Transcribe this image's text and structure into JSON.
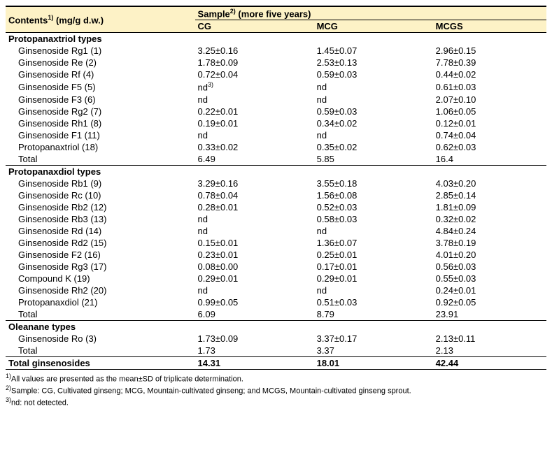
{
  "header": {
    "contents_label": "Contents",
    "contents_sup": "1)",
    "contents_unit": " (mg/g d.w.)",
    "sample_label": "Sample",
    "sample_sup": "2)",
    "sample_note": " (more five years)",
    "col_cg": "CG",
    "col_mcg": "MCG",
    "col_mcgs": "MCGS"
  },
  "sections": [
    {
      "title": "Protopanaxtriol types",
      "rows": [
        {
          "name": "Ginsenoside Rg1 (1)",
          "cg": "3.25±0.16",
          "mcg": "1.45±0.07",
          "mcgs": "2.96±0.15"
        },
        {
          "name": "Ginsenoside Re (2)",
          "cg": "1.78±0.09",
          "mcg": "2.53±0.13",
          "mcgs": "7.78±0.39"
        },
        {
          "name": "Ginsenoside Rf (4)",
          "cg": "0.72±0.04",
          "mcg": "0.59±0.03",
          "mcgs": "0.44±0.02"
        },
        {
          "name": "Ginsenoside F5 (5)",
          "cg": "nd",
          "cg_sup": "3)",
          "mcg": "nd",
          "mcgs": "0.61±0.03"
        },
        {
          "name": "Ginsenoside F3 (6)",
          "cg": "nd",
          "mcg": "nd",
          "mcgs": "2.07±0.10"
        },
        {
          "name": "Ginsenoside Rg2 (7)",
          "cg": "0.22±0.01",
          "mcg": "0.59±0.03",
          "mcgs": "1.06±0.05"
        },
        {
          "name": "Ginsenoside Rh1 (8)",
          "cg": "0.19±0.01",
          "mcg": "0.34±0.02",
          "mcgs": "0.12±0.01"
        },
        {
          "name": "Ginsenoside F1 (11)",
          "cg": "nd",
          "mcg": "nd",
          "mcgs": "0.74±0.04"
        },
        {
          "name": "Protopanaxtriol (18)",
          "cg": "0.33±0.02",
          "mcg": "0.35±0.02",
          "mcgs": "0.62±0.03"
        },
        {
          "name": "Total",
          "cg": "6.49",
          "mcg": "5.85",
          "mcgs": "16.4"
        }
      ]
    },
    {
      "title": "Protopanaxdiol types",
      "rows": [
        {
          "name": "Ginsenoside Rb1 (9)",
          "cg": "3.29±0.16",
          "mcg": "3.55±0.18",
          "mcgs": "4.03±0.20"
        },
        {
          "name": "Ginsenoside Rc (10)",
          "cg": "0.78±0.04",
          "mcg": "1.56±0.08",
          "mcgs": "2.85±0.14"
        },
        {
          "name": "Ginsenoside Rb2 (12)",
          "cg": "0.28±0.01",
          "mcg": "0.52±0.03",
          "mcgs": "1.81±0.09"
        },
        {
          "name": "Ginsenoside Rb3 (13)",
          "cg": "nd",
          "mcg": "0.58±0.03",
          "mcgs": "0.32±0.02"
        },
        {
          "name": "Ginsenoside Rd (14)",
          "cg": "nd",
          "mcg": "nd",
          "mcgs": "4.84±0.24"
        },
        {
          "name": "Ginsenoside Rd2 (15)",
          "cg": "0.15±0.01",
          "mcg": "1.36±0.07",
          "mcgs": "3.78±0.19"
        },
        {
          "name": "Ginsenoside F2 (16)",
          "cg": "0.23±0.01",
          "mcg": "0.25±0.01",
          "mcgs": "4.01±0.20"
        },
        {
          "name": "Ginsenoside Rg3 (17)",
          "cg": "0.08±0.00",
          "mcg": "0.17±0.01",
          "mcgs": "0.56±0.03"
        },
        {
          "name": "Compound K (19)",
          "cg": "0.29±0.01",
          "mcg": "0.29±0.01",
          "mcgs": "0.55±0.03"
        },
        {
          "name": "Ginsenoside Rh2 (20)",
          "cg": "nd",
          "mcg": "nd",
          "mcgs": "0.24±0.01"
        },
        {
          "name": "Protopanaxdiol (21)",
          "cg": "0.99±0.05",
          "mcg": "0.51±0.03",
          "mcgs": "0.92±0.05"
        },
        {
          "name": "Total",
          "cg": "6.09",
          "mcg": "8.79",
          "mcgs": "23.91"
        }
      ]
    },
    {
      "title": "Oleanane types",
      "rows": [
        {
          "name": "Ginsenoside Ro (3)",
          "cg": "1.73±0.09",
          "mcg": "3.37±0.17",
          "mcgs": "2.13±0.11"
        },
        {
          "name": "Total",
          "cg": "1.73",
          "mcg": "3.37",
          "mcgs": "2.13"
        }
      ]
    }
  ],
  "grand_total": {
    "label": "Total ginsenosides",
    "cg": "14.31",
    "mcg": "18.01",
    "mcgs": "42.44"
  },
  "footnotes": {
    "f1_sup": "1)",
    "f1": "All values are presented as the mean±SD of triplicate determination.",
    "f2_sup": "2)",
    "f2": "Sample: CG, Cultivated ginseng; MCG, Mountain-cultivated ginseng; and MCGS, Mountain-cultivated ginseng sprout.",
    "f3_sup": "3)",
    "f3": "nd: not detected."
  },
  "style": {
    "header_bg": "#fdf2c6",
    "font_size_body": 13,
    "font_size_footnote": 11
  }
}
